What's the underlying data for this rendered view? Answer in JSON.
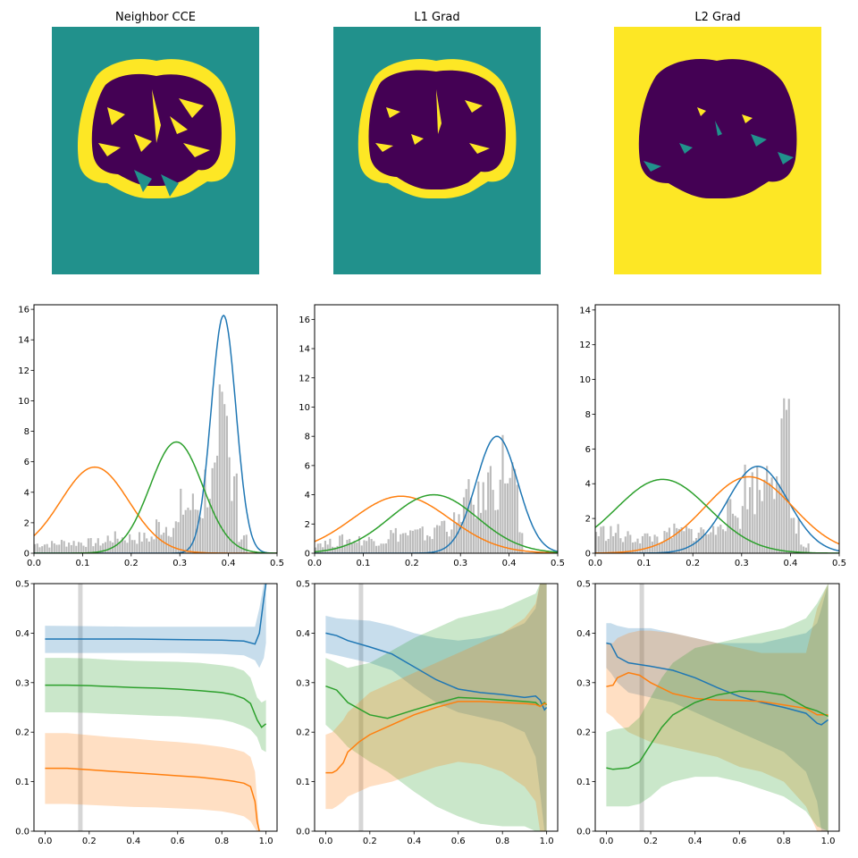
{
  "titles": [
    "Neighbor CCE",
    "L1 Grad",
    "L2 Grad"
  ],
  "colors": {
    "blue": "#1f77b4",
    "orange": "#ff7f0e",
    "green": "#2ca02c",
    "histogram": "#bbbbbb",
    "viridis_dark": "#440154",
    "viridis_teal": "#21918c",
    "viridis_yellow": "#fde725",
    "marker_line": "#cccccc"
  },
  "segmentation_maps": [
    {
      "title": "Neighbor CCE",
      "background": "teal",
      "brain_interior": "dark",
      "cortex_rim": "yellow",
      "border_speckles": "teal"
    },
    {
      "title": "L1 Grad",
      "background": "teal",
      "brain_interior": "dark",
      "cortex_rim": "yellow",
      "border_speckles": "teal"
    },
    {
      "title": "L2 Grad",
      "background": "yellow",
      "brain_interior": "dark",
      "cortex_rim": "dark",
      "border_speckles": "teal"
    }
  ],
  "chart_data": [
    {
      "type": "line",
      "panel": "Neighbor CCE histogram with Gaussian fits",
      "xlim": [
        0,
        0.5
      ],
      "ylim": [
        0,
        16.3
      ],
      "xticks": [
        "0.0",
        "0.1",
        "0.2",
        "0.3",
        "0.4",
        "0.5"
      ],
      "yticks": [
        "0",
        "2",
        "4",
        "6",
        "8",
        "10",
        "12",
        "14",
        "16"
      ],
      "histogram": {
        "color": "histogram",
        "bins": [
          [
            0,
            0.05,
            0.6
          ],
          [
            0.05,
            0.15,
            0.7
          ],
          [
            0.15,
            0.25,
            1.0
          ],
          [
            0.25,
            0.3,
            1.8
          ],
          [
            0.3,
            0.35,
            3.0
          ],
          [
            0.35,
            0.38,
            4.5
          ],
          [
            0.38,
            0.4,
            8.0
          ],
          [
            0.4,
            0.42,
            6.0
          ],
          [
            0.42,
            0.44,
            1.0
          ]
        ]
      },
      "series": [
        {
          "color": "blue",
          "gaussian": {
            "mean": 0.39,
            "std": 0.0255,
            "peak": 15.6
          }
        },
        {
          "color": "orange",
          "gaussian": {
            "mean": 0.125,
            "std": 0.07,
            "peak": 5.65
          }
        },
        {
          "color": "green",
          "gaussian": {
            "mean": 0.293,
            "std": 0.054,
            "peak": 7.3
          }
        }
      ]
    },
    {
      "type": "line",
      "panel": "L1 Grad histogram with Gaussian fits",
      "xlim": [
        0,
        0.5
      ],
      "ylim": [
        0,
        17
      ],
      "xticks": [
        "0.0",
        "0.1",
        "0.2",
        "0.3",
        "0.4",
        "0.5"
      ],
      "yticks": [
        "0",
        "2",
        "4",
        "6",
        "8",
        "10",
        "12",
        "14",
        "16"
      ],
      "histogram": {
        "color": "histogram",
        "bins": [
          [
            0,
            0.05,
            0.7
          ],
          [
            0.05,
            0.15,
            0.9
          ],
          [
            0.15,
            0.25,
            1.3
          ],
          [
            0.25,
            0.3,
            2.0
          ],
          [
            0.3,
            0.35,
            3.5
          ],
          [
            0.35,
            0.38,
            4.8
          ],
          [
            0.38,
            0.4,
            6.0
          ],
          [
            0.4,
            0.42,
            5.0
          ],
          [
            0.42,
            0.43,
            1.0
          ]
        ]
      },
      "series": [
        {
          "color": "blue",
          "gaussian": {
            "mean": 0.375,
            "std": 0.043,
            "peak": 8.0
          }
        },
        {
          "color": "orange",
          "gaussian": {
            "mean": 0.178,
            "std": 0.1,
            "peak": 3.9
          }
        },
        {
          "color": "green",
          "gaussian": {
            "mean": 0.245,
            "std": 0.09,
            "peak": 4.0
          }
        }
      ]
    },
    {
      "type": "line",
      "panel": "L2 Grad histogram with Gaussian fits",
      "xlim": [
        0,
        0.5
      ],
      "ylim": [
        0,
        14.3
      ],
      "xticks": [
        "0.0",
        "0.1",
        "0.2",
        "0.3",
        "0.4",
        "0.5"
      ],
      "yticks": [
        "0",
        "2",
        "4",
        "6",
        "8",
        "10",
        "12",
        "14"
      ],
      "histogram": {
        "color": "histogram",
        "bins": [
          [
            0,
            0.05,
            1.2
          ],
          [
            0.05,
            0.15,
            0.9
          ],
          [
            0.15,
            0.25,
            1.2
          ],
          [
            0.25,
            0.3,
            2.2
          ],
          [
            0.3,
            0.35,
            3.8
          ],
          [
            0.35,
            0.38,
            5.5
          ],
          [
            0.38,
            0.4,
            6.5
          ],
          [
            0.4,
            0.42,
            2.0
          ],
          [
            0.42,
            0.44,
            0.4
          ]
        ]
      },
      "series": [
        {
          "color": "blue",
          "gaussian": {
            "mean": 0.333,
            "std": 0.062,
            "peak": 5.0
          }
        },
        {
          "color": "orange",
          "gaussian": {
            "mean": 0.315,
            "std": 0.09,
            "peak": 4.4
          }
        },
        {
          "color": "green",
          "gaussian": {
            "mean": 0.138,
            "std": 0.095,
            "peak": 4.25
          }
        }
      ]
    },
    {
      "type": "area",
      "panel": "Neighbor CCE means with bands",
      "xlim": [
        -0.05,
        1.05
      ],
      "ylim": [
        0,
        0.5
      ],
      "xticks": [
        "0.0",
        "0.2",
        "0.4",
        "0.6",
        "0.8",
        "1.0"
      ],
      "yticks": [
        "0.0",
        "0.1",
        "0.2",
        "0.3",
        "0.4",
        "0.5"
      ],
      "vline": 0.16,
      "series": [
        {
          "color": "blue",
          "x": [
            0,
            0.2,
            0.4,
            0.6,
            0.8,
            0.9,
            0.95,
            0.97,
            0.99,
            1.0
          ],
          "mean": [
            0.388,
            0.388,
            0.388,
            0.387,
            0.386,
            0.384,
            0.378,
            0.4,
            0.47,
            0.5
          ],
          "lower": [
            0.36,
            0.36,
            0.36,
            0.36,
            0.358,
            0.355,
            0.345,
            0.33,
            0.35,
            0.38
          ],
          "upper": [
            0.415,
            0.414,
            0.413,
            0.413,
            0.413,
            0.413,
            0.413,
            0.45,
            0.5,
            0.5
          ]
        },
        {
          "color": "green",
          "x": [
            0,
            0.1,
            0.2,
            0.3,
            0.4,
            0.5,
            0.6,
            0.7,
            0.8,
            0.85,
            0.9,
            0.93,
            0.96,
            0.98,
            1.0
          ],
          "mean": [
            0.295,
            0.295,
            0.294,
            0.292,
            0.29,
            0.289,
            0.287,
            0.284,
            0.28,
            0.276,
            0.268,
            0.258,
            0.225,
            0.21,
            0.217
          ],
          "lower": [
            0.24,
            0.24,
            0.239,
            0.237,
            0.235,
            0.233,
            0.232,
            0.229,
            0.225,
            0.22,
            0.212,
            0.205,
            0.19,
            0.165,
            0.16
          ],
          "upper": [
            0.35,
            0.35,
            0.349,
            0.346,
            0.344,
            0.343,
            0.342,
            0.34,
            0.335,
            0.332,
            0.324,
            0.31,
            0.27,
            0.26,
            0.265
          ]
        },
        {
          "color": "orange",
          "x": [
            0,
            0.1,
            0.2,
            0.3,
            0.4,
            0.5,
            0.6,
            0.7,
            0.8,
            0.85,
            0.9,
            0.93,
            0.95,
            0.96,
            0.97
          ],
          "mean": [
            0.127,
            0.127,
            0.124,
            0.121,
            0.118,
            0.115,
            0.112,
            0.109,
            0.104,
            0.101,
            0.097,
            0.09,
            0.06,
            0.02,
            0.0
          ],
          "lower": [
            0.055,
            0.055,
            0.053,
            0.051,
            0.049,
            0.048,
            0.046,
            0.044,
            0.04,
            0.036,
            0.03,
            0.02,
            0.005,
            0.0,
            0.0
          ],
          "upper": [
            0.198,
            0.198,
            0.194,
            0.19,
            0.187,
            0.183,
            0.18,
            0.176,
            0.17,
            0.166,
            0.16,
            0.15,
            0.12,
            0.06,
            0.0
          ]
        }
      ]
    },
    {
      "type": "area",
      "panel": "L1 Grad means with bands",
      "xlim": [
        -0.05,
        1.05
      ],
      "ylim": [
        0,
        0.5
      ],
      "xticks": [
        "0.0",
        "0.2",
        "0.4",
        "0.6",
        "0.8",
        "1.0"
      ],
      "yticks": [
        "0.0",
        "0.1",
        "0.2",
        "0.3",
        "0.4",
        "0.5"
      ],
      "vline": 0.16,
      "series": [
        {
          "color": "blue",
          "x": [
            0,
            0.05,
            0.1,
            0.2,
            0.3,
            0.4,
            0.5,
            0.6,
            0.7,
            0.8,
            0.9,
            0.95,
            0.97,
            0.99,
            1.0
          ],
          "mean": [
            0.4,
            0.395,
            0.385,
            0.372,
            0.358,
            0.332,
            0.306,
            0.287,
            0.28,
            0.276,
            0.27,
            0.273,
            0.265,
            0.245,
            0.25
          ],
          "lower": [
            0.36,
            0.355,
            0.35,
            0.34,
            0.325,
            0.29,
            0.26,
            0.24,
            0.23,
            0.22,
            0.2,
            0.15,
            0.08,
            0.0,
            0.0
          ],
          "upper": [
            0.435,
            0.43,
            0.428,
            0.425,
            0.415,
            0.4,
            0.39,
            0.385,
            0.39,
            0.4,
            0.42,
            0.45,
            0.5,
            0.5,
            0.5
          ]
        },
        {
          "color": "green",
          "x": [
            0,
            0.05,
            0.1,
            0.2,
            0.28,
            0.4,
            0.5,
            0.6,
            0.7,
            0.8,
            0.9,
            0.95,
            0.97,
            0.99,
            1.0
          ],
          "mean": [
            0.293,
            0.285,
            0.26,
            0.235,
            0.228,
            0.245,
            0.258,
            0.27,
            0.268,
            0.265,
            0.262,
            0.26,
            0.252,
            0.26,
            0.255
          ],
          "lower": [
            0.215,
            0.195,
            0.17,
            0.14,
            0.12,
            0.08,
            0.05,
            0.03,
            0.015,
            0.01,
            0.01,
            0.0,
            0.0,
            0.0,
            0.0
          ],
          "upper": [
            0.35,
            0.34,
            0.33,
            0.34,
            0.36,
            0.39,
            0.41,
            0.43,
            0.44,
            0.45,
            0.47,
            0.48,
            0.5,
            0.5,
            0.5
          ]
        },
        {
          "color": "orange",
          "x": [
            0,
            0.03,
            0.05,
            0.08,
            0.1,
            0.15,
            0.2,
            0.3,
            0.4,
            0.5,
            0.6,
            0.7,
            0.8,
            0.9,
            0.95,
            0.97,
            0.99,
            1.0
          ],
          "mean": [
            0.118,
            0.118,
            0.123,
            0.138,
            0.16,
            0.18,
            0.195,
            0.215,
            0.235,
            0.25,
            0.262,
            0.262,
            0.26,
            0.258,
            0.256,
            0.252,
            0.258,
            0.257
          ],
          "lower": [
            0.045,
            0.045,
            0.05,
            0.06,
            0.07,
            0.08,
            0.09,
            0.1,
            0.115,
            0.13,
            0.14,
            0.135,
            0.12,
            0.09,
            0.06,
            0.0,
            0.0,
            0.0
          ],
          "upper": [
            0.195,
            0.2,
            0.21,
            0.225,
            0.24,
            0.26,
            0.28,
            0.3,
            0.32,
            0.34,
            0.36,
            0.38,
            0.4,
            0.43,
            0.46,
            0.5,
            0.5,
            0.5
          ]
        }
      ]
    },
    {
      "type": "area",
      "panel": "L2 Grad means with bands",
      "xlim": [
        -0.05,
        1.05
      ],
      "ylim": [
        0,
        0.5
      ],
      "xticks": [
        "0.0",
        "0.2",
        "0.4",
        "0.6",
        "0.8",
        "1.0"
      ],
      "yticks": [
        "0.0",
        "0.1",
        "0.2",
        "0.3",
        "0.4",
        "0.5"
      ],
      "vline": 0.16,
      "series": [
        {
          "color": "blue",
          "x": [
            0,
            0.02,
            0.05,
            0.1,
            0.2,
            0.3,
            0.4,
            0.5,
            0.6,
            0.7,
            0.8,
            0.9,
            0.95,
            0.97,
            1.0
          ],
          "mean": [
            0.38,
            0.378,
            0.352,
            0.34,
            0.333,
            0.325,
            0.31,
            0.29,
            0.272,
            0.26,
            0.25,
            0.238,
            0.218,
            0.215,
            0.225
          ],
          "lower": [
            0.33,
            0.32,
            0.3,
            0.28,
            0.27,
            0.26,
            0.24,
            0.22,
            0.2,
            0.18,
            0.16,
            0.12,
            0.06,
            0.0,
            0.0
          ],
          "upper": [
            0.42,
            0.42,
            0.415,
            0.41,
            0.41,
            0.4,
            0.39,
            0.38,
            0.38,
            0.38,
            0.39,
            0.4,
            0.42,
            0.45,
            0.5
          ]
        },
        {
          "color": "orange",
          "x": [
            0,
            0.03,
            0.05,
            0.1,
            0.15,
            0.2,
            0.3,
            0.4,
            0.5,
            0.6,
            0.7,
            0.8,
            0.9,
            0.95,
            1.0
          ],
          "mean": [
            0.292,
            0.295,
            0.31,
            0.32,
            0.315,
            0.3,
            0.278,
            0.268,
            0.265,
            0.264,
            0.262,
            0.255,
            0.248,
            0.235,
            0.235
          ],
          "lower": [
            0.24,
            0.23,
            0.22,
            0.2,
            0.19,
            0.18,
            0.17,
            0.16,
            0.15,
            0.13,
            0.12,
            0.1,
            0.05,
            0.0,
            0.0
          ],
          "upper": [
            0.38,
            0.38,
            0.39,
            0.4,
            0.405,
            0.405,
            0.4,
            0.39,
            0.38,
            0.37,
            0.36,
            0.36,
            0.36,
            0.45,
            0.5
          ]
        },
        {
          "color": "green",
          "x": [
            0,
            0.03,
            0.1,
            0.15,
            0.2,
            0.25,
            0.3,
            0.4,
            0.5,
            0.6,
            0.7,
            0.8,
            0.9,
            0.95,
            1.0
          ],
          "mean": [
            0.128,
            0.125,
            0.128,
            0.14,
            0.175,
            0.21,
            0.235,
            0.26,
            0.275,
            0.283,
            0.282,
            0.275,
            0.25,
            0.243,
            0.232
          ],
          "lower": [
            0.05,
            0.05,
            0.05,
            0.055,
            0.07,
            0.09,
            0.1,
            0.11,
            0.11,
            0.1,
            0.085,
            0.07,
            0.04,
            0.01,
            0.0
          ],
          "upper": [
            0.2,
            0.205,
            0.21,
            0.23,
            0.27,
            0.31,
            0.34,
            0.37,
            0.38,
            0.39,
            0.4,
            0.41,
            0.43,
            0.46,
            0.5
          ]
        }
      ]
    }
  ]
}
